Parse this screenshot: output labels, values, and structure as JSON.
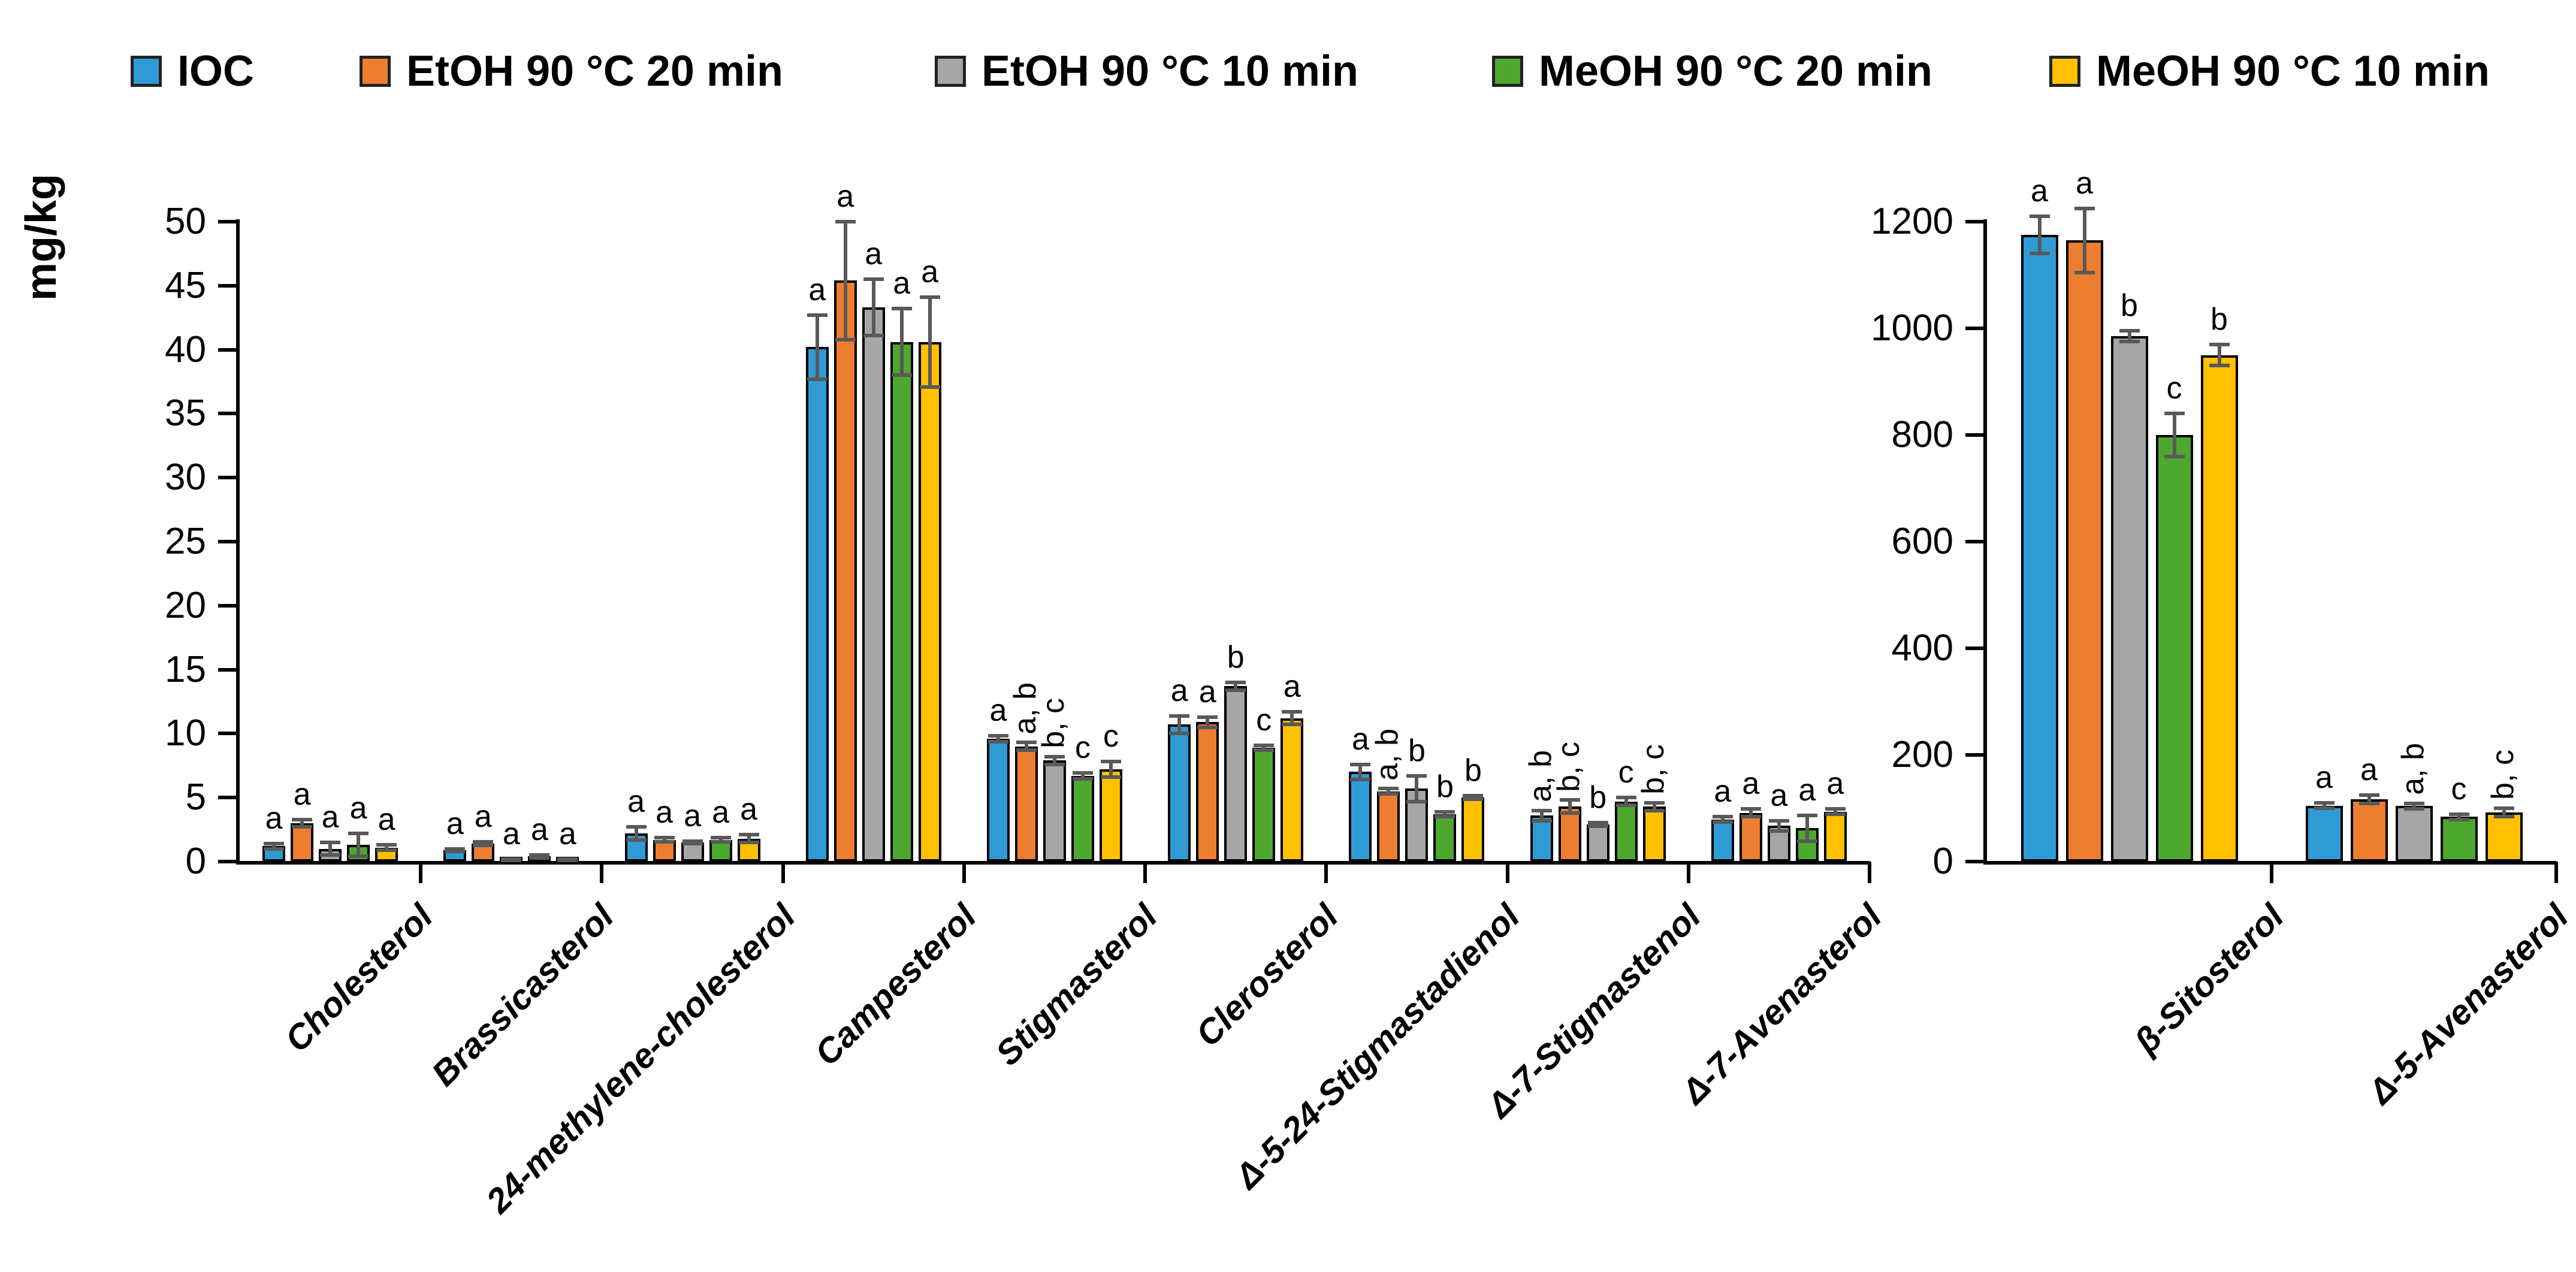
{
  "y_axis_label": "mg/kg",
  "legend": {
    "items": [
      {
        "label": "IOC",
        "color": "#2E9BD5"
      },
      {
        "label": "EtOH 90 °C 20 min",
        "color": "#ED7D31"
      },
      {
        "label": "EtOH 90 °C 10 min",
        "color": "#A6A6A6"
      },
      {
        "label": "MeOH 90 °C 20 min",
        "color": "#4EA72E"
      },
      {
        "label": "MeOH 90 °C 10 min",
        "color": "#FFC000"
      }
    ]
  },
  "chart_data": {
    "type": "bar",
    "subtype": "grouped-vertical-with-error-bars-and-significance-letters",
    "title": "",
    "ylabel": "mg/kg",
    "xlabel": "",
    "grid": false,
    "legend_position": "top",
    "bar_outline_color": "#000000",
    "error_bar_color": "#595959",
    "series_names": [
      "IOC",
      "EtOH 90 °C 20 min",
      "EtOH 90 °C 10 min",
      "MeOH 90 °C 20 min",
      "MeOH 90 °C 10 min"
    ],
    "panels": [
      {
        "name": "minor-sterols-panel",
        "ylim": [
          0,
          50
        ],
        "ytick_step": 5,
        "yticks": [
          0,
          5,
          10,
          15,
          20,
          25,
          30,
          35,
          40,
          45,
          50
        ],
        "categories": [
          "Cholesterol",
          "Brassicasterol",
          "24-methylene-cholesterol",
          "Campesterol",
          "Stigmasterol",
          "Clerosterol",
          "Δ-5-24-Stigmastadienol",
          "Δ-7-Stigmastenol",
          "Δ-7-Avenasterol"
        ],
        "series": [
          {
            "name": "IOC",
            "values": [
              1.2,
              0.9,
              2.2,
              40.2,
              9.6,
              10.7,
              7.0,
              3.6,
              3.3
            ],
            "errors": [
              0.2,
              0.1,
              0.5,
              2.5,
              0.25,
              0.7,
              0.6,
              0.4,
              0.2
            ],
            "letters": [
              "a",
              "a",
              "a",
              "a",
              "a",
              "a",
              "a",
              "a, b",
              "a"
            ]
          },
          {
            "name": "EtOH 90 °C 20 min",
            "values": [
              3.0,
              1.4,
              1.7,
              45.4,
              9.0,
              10.9,
              5.5,
              4.3,
              3.8
            ],
            "errors": [
              0.3,
              0.15,
              0.15,
              4.6,
              0.3,
              0.4,
              0.2,
              0.5,
              0.3
            ],
            "letters": [
              "a",
              "a",
              "a",
              "a",
              "a, b",
              "a",
              "a, b",
              "b, c",
              "a"
            ]
          },
          {
            "name": "EtOH 90 °C 10 min",
            "values": [
              1.0,
              0.15,
              1.5,
              43.3,
              7.9,
              13.7,
              5.7,
              2.9,
              2.8
            ],
            "errors": [
              0.5,
              0.05,
              0.1,
              2.2,
              0.3,
              0.3,
              1.0,
              0.15,
              0.4
            ],
            "letters": [
              "a",
              "a",
              "a",
              "a",
              "b, c",
              "b",
              "b",
              "b",
              "a"
            ]
          },
          {
            "name": "MeOH 90 °C 20 min",
            "values": [
              1.3,
              0.4,
              1.7,
              40.6,
              6.7,
              8.9,
              3.7,
              4.7,
              2.6
            ],
            "errors": [
              0.9,
              0.1,
              0.15,
              2.6,
              0.25,
              0.2,
              0.2,
              0.3,
              1.0
            ],
            "letters": [
              "a",
              "a",
              "a",
              "a",
              "c",
              "c",
              "b",
              "c",
              "a"
            ]
          },
          {
            "name": "MeOH 90 °C 10 min",
            "values": [
              1.1,
              0.15,
              1.8,
              40.6,
              7.2,
              11.2,
              5.0,
              4.3,
              3.9
            ],
            "errors": [
              0.2,
              0.05,
              0.3,
              3.5,
              0.6,
              0.5,
              0.15,
              0.3,
              0.2
            ],
            "letters": [
              "a",
              "a",
              "a",
              "a",
              "c",
              "a",
              "b",
              "b, c",
              "a"
            ]
          }
        ]
      },
      {
        "name": "major-sterols-panel",
        "ylim": [
          0,
          1200
        ],
        "ytick_step": 200,
        "yticks": [
          0,
          200,
          400,
          600,
          800,
          1000,
          1200
        ],
        "categories": [
          "β-Sitosterol",
          "Δ-5-Avenasterol"
        ],
        "series": [
          {
            "name": "IOC",
            "values": [
              1175,
              105
            ],
            "errors": [
              35,
              5
            ],
            "letters": [
              "a",
              "a"
            ]
          },
          {
            "name": "EtOH 90 °C 20 min",
            "values": [
              1165,
              117
            ],
            "errors": [
              60,
              8
            ],
            "letters": [
              "a",
              "a"
            ]
          },
          {
            "name": "EtOH 90 °C 10 min",
            "values": [
              985,
              104
            ],
            "errors": [
              10,
              5
            ],
            "letters": [
              "b",
              "a, b"
            ]
          },
          {
            "name": "MeOH 90 °C 20 min",
            "values": [
              800,
              84
            ],
            "errors": [
              40,
              5
            ],
            "letters": [
              "c",
              "c"
            ]
          },
          {
            "name": "MeOH 90 °C 10 min",
            "values": [
              950,
              92
            ],
            "errors": [
              20,
              8
            ],
            "letters": [
              "b",
              "b, c"
            ]
          }
        ]
      }
    ]
  }
}
